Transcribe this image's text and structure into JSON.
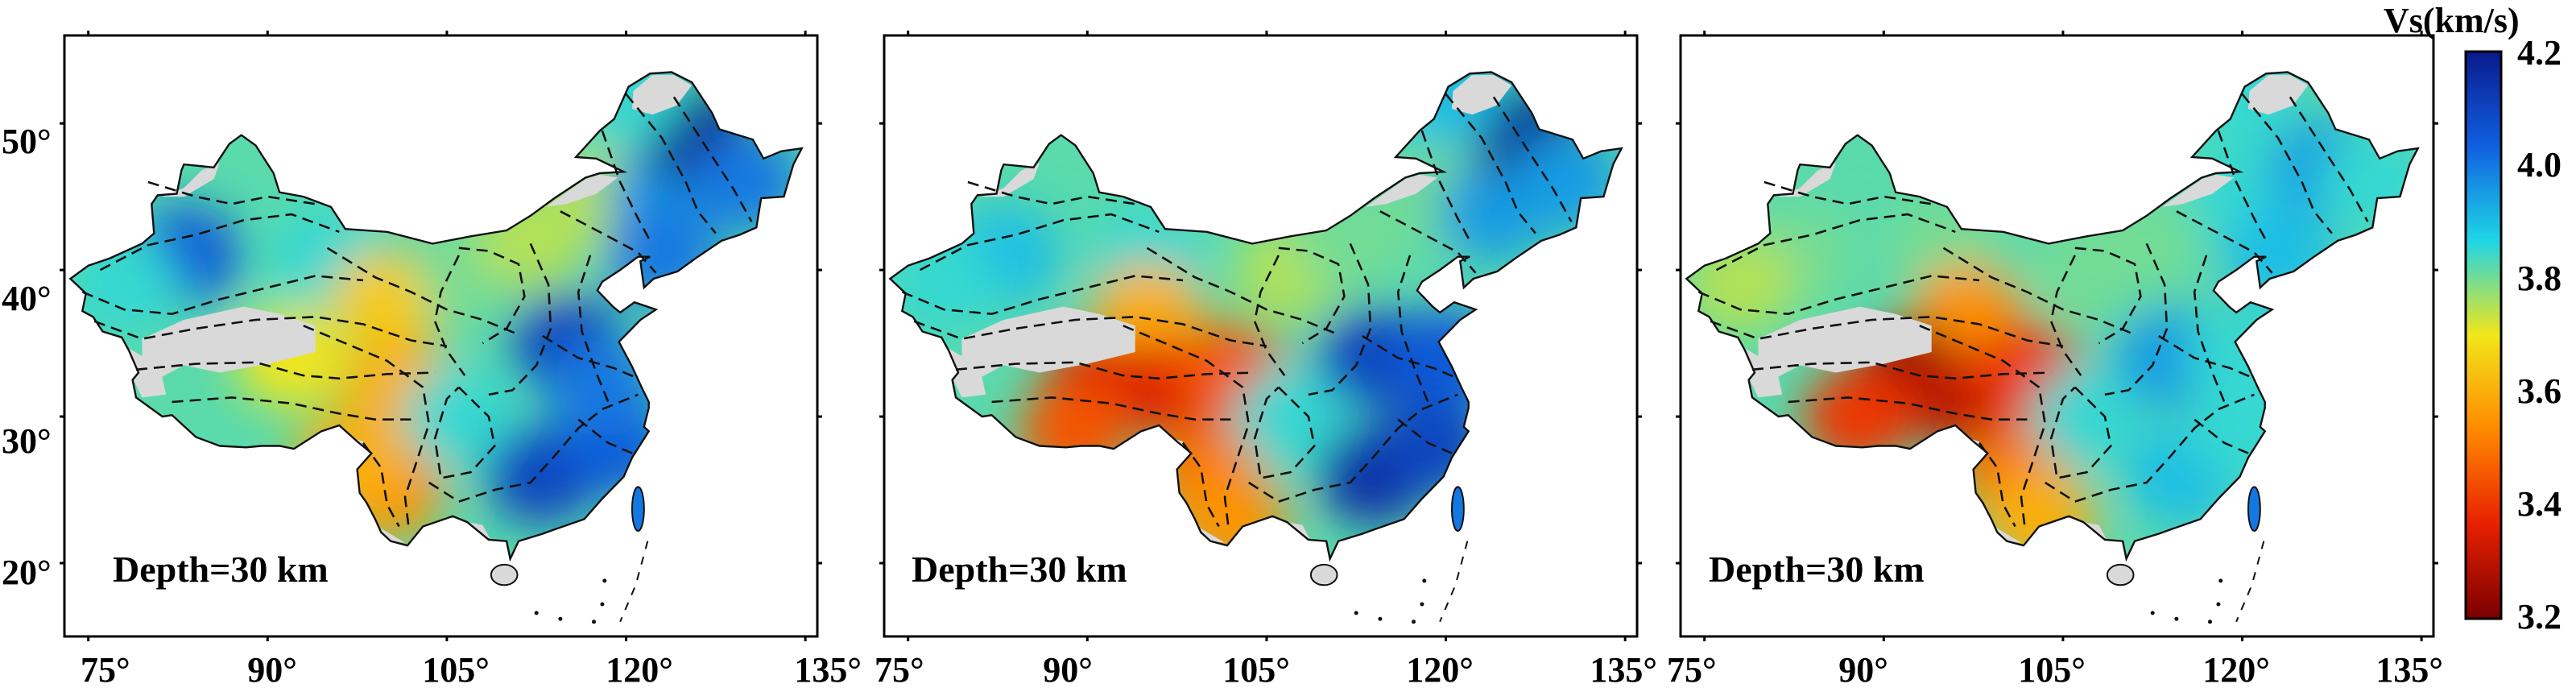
{
  "chart_data": [
    {
      "type": "heatmap",
      "annotation": "Depth=30 km",
      "x_ticks": [
        "75°",
        "90°",
        "105°",
        "120°",
        "135°"
      ],
      "y_ticks": [
        "50°",
        "40°",
        "30°",
        "20°"
      ],
      "x_range": [
        73,
        136
      ],
      "y_range": [
        15,
        56
      ],
      "regions": [
        {
          "lon": 83,
          "lat": 41,
          "vs": 4.05
        },
        {
          "lon": 78,
          "lat": 39,
          "vs": 3.85
        },
        {
          "lon": 95,
          "lat": 41,
          "vs": 3.85
        },
        {
          "lon": 100,
          "lat": 38,
          "vs": 3.65
        },
        {
          "lon": 92,
          "lat": 34,
          "vs": 3.7
        },
        {
          "lon": 101,
          "lat": 32,
          "vs": 3.6
        },
        {
          "lon": 100,
          "lat": 25,
          "vs": 3.55
        },
        {
          "lon": 97,
          "lat": 27,
          "vs": 3.6
        },
        {
          "lon": 107,
          "lat": 40,
          "vs": 3.8
        },
        {
          "lon": 106,
          "lat": 30,
          "vs": 3.85
        },
        {
          "lon": 112,
          "lat": 42,
          "vs": 3.75
        },
        {
          "lon": 115,
          "lat": 35,
          "vs": 4.1
        },
        {
          "lon": 113,
          "lat": 26,
          "vs": 4.1
        },
        {
          "lon": 119,
          "lat": 28,
          "vs": 4.05
        },
        {
          "lon": 118,
          "lat": 32,
          "vs": 4.0
        },
        {
          "lon": 118,
          "lat": 45,
          "vs": 3.75
        },
        {
          "lon": 123,
          "lat": 45,
          "vs": 3.95
        },
        {
          "lon": 126,
          "lat": 49,
          "vs": 4.2
        },
        {
          "lon": 130,
          "lat": 46,
          "vs": 4.0
        },
        {
          "lon": 123,
          "lat": 41,
          "vs": 4.0
        },
        {
          "lon": 120,
          "lat": 52,
          "vs": 3.85
        }
      ]
    },
    {
      "type": "heatmap",
      "annotation": "Depth=30 km",
      "x_ticks": [
        "75°",
        "90°",
        "105°",
        "120°",
        "135°"
      ],
      "y_ticks": [],
      "x_range": [
        73,
        136
      ],
      "y_range": [
        15,
        56
      ],
      "regions": [
        {
          "lon": 83,
          "lat": 41,
          "vs": 3.9
        },
        {
          "lon": 78,
          "lat": 39,
          "vs": 3.85
        },
        {
          "lon": 95,
          "lat": 41,
          "vs": 3.85
        },
        {
          "lon": 95,
          "lat": 37,
          "vs": 3.6
        },
        {
          "lon": 91,
          "lat": 32,
          "vs": 3.35
        },
        {
          "lon": 97,
          "lat": 32,
          "vs": 3.35
        },
        {
          "lon": 102,
          "lat": 33,
          "vs": 3.45
        },
        {
          "lon": 89,
          "lat": 29,
          "vs": 3.45
        },
        {
          "lon": 100,
          "lat": 26,
          "vs": 3.5
        },
        {
          "lon": 102,
          "lat": 23,
          "vs": 3.55
        },
        {
          "lon": 107,
          "lat": 40,
          "vs": 3.75
        },
        {
          "lon": 107,
          "lat": 30,
          "vs": 3.85
        },
        {
          "lon": 112,
          "lat": 42,
          "vs": 3.8
        },
        {
          "lon": 114,
          "lat": 34,
          "vs": 4.1
        },
        {
          "lon": 114,
          "lat": 26,
          "vs": 4.15
        },
        {
          "lon": 119,
          "lat": 28,
          "vs": 4.1
        },
        {
          "lon": 120,
          "lat": 34,
          "vs": 4.05
        },
        {
          "lon": 120,
          "lat": 45,
          "vs": 3.8
        },
        {
          "lon": 124,
          "lat": 44,
          "vs": 3.95
        },
        {
          "lon": 127,
          "lat": 49,
          "vs": 4.2
        },
        {
          "lon": 130,
          "lat": 46,
          "vs": 3.95
        },
        {
          "lon": 120,
          "lat": 52,
          "vs": 3.9
        }
      ]
    },
    {
      "type": "heatmap",
      "annotation": "Depth=30 km",
      "x_ticks": [
        "75°",
        "90°",
        "105°",
        "120°",
        "135°"
      ],
      "y_ticks": [],
      "x_range": [
        73,
        136
      ],
      "y_range": [
        15,
        56
      ],
      "regions": [
        {
          "lon": 83,
          "lat": 41,
          "vs": 3.8
        },
        {
          "lon": 78,
          "lat": 39,
          "vs": 3.75
        },
        {
          "lon": 95,
          "lat": 42,
          "vs": 3.8
        },
        {
          "lon": 97,
          "lat": 37,
          "vs": 3.55
        },
        {
          "lon": 92,
          "lat": 33,
          "vs": 3.25
        },
        {
          "lon": 97,
          "lat": 31,
          "vs": 3.3
        },
        {
          "lon": 102,
          "lat": 33,
          "vs": 3.4
        },
        {
          "lon": 88,
          "lat": 30,
          "vs": 3.4
        },
        {
          "lon": 101,
          "lat": 26,
          "vs": 3.5
        },
        {
          "lon": 103,
          "lat": 23,
          "vs": 3.6
        },
        {
          "lon": 107,
          "lat": 40,
          "vs": 3.8
        },
        {
          "lon": 107,
          "lat": 30,
          "vs": 3.85
        },
        {
          "lon": 112,
          "lat": 42,
          "vs": 3.8
        },
        {
          "lon": 114,
          "lat": 34,
          "vs": 3.95
        },
        {
          "lon": 115,
          "lat": 26,
          "vs": 3.9
        },
        {
          "lon": 120,
          "lat": 29,
          "vs": 3.85
        },
        {
          "lon": 120,
          "lat": 34,
          "vs": 3.85
        },
        {
          "lon": 120,
          "lat": 45,
          "vs": 3.85
        },
        {
          "lon": 127,
          "lat": 47,
          "vs": 3.95
        },
        {
          "lon": 131,
          "lat": 46,
          "vs": 3.85
        },
        {
          "lon": 123,
          "lat": 41,
          "vs": 3.9
        },
        {
          "lon": 120,
          "lat": 52,
          "vs": 3.85
        }
      ]
    }
  ],
  "colorbar": {
    "title": "Vs(km/s)",
    "min": 3.2,
    "max": 4.2,
    "ticks": [
      "4.2",
      "4.0",
      "3.8",
      "3.6",
      "3.4",
      "3.2"
    ],
    "colors": [
      "#7a0000",
      "#e82000",
      "#ff8a00",
      "#f2e61a",
      "#1fd6e6",
      "#1060e0",
      "#0a1a8c"
    ]
  }
}
